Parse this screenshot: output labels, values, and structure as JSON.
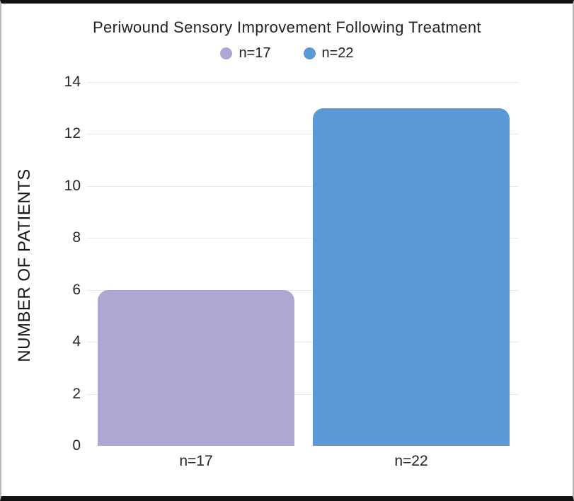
{
  "chart_data": {
    "type": "bar",
    "title": "Periwound Sensory Improvement Following Treatment",
    "categories": [
      "n=17",
      "n=22"
    ],
    "values": [
      6,
      13
    ],
    "bar_colors": [
      "#aea7d4",
      "#5b99d6"
    ],
    "xlabel": "",
    "ylabel": "NUMBER OF PATIENTS",
    "ylim": [
      0,
      14
    ],
    "yticks": [
      0,
      2,
      4,
      6,
      8,
      10,
      12,
      14
    ],
    "grid": "horizontal",
    "gridline_color": "#e9e9e9",
    "legend": {
      "position": "top-center",
      "entries": [
        {
          "label": "n=17",
          "color": "#aea7d4"
        },
        {
          "label": "n=22",
          "color": "#5b99d6"
        }
      ]
    }
  }
}
